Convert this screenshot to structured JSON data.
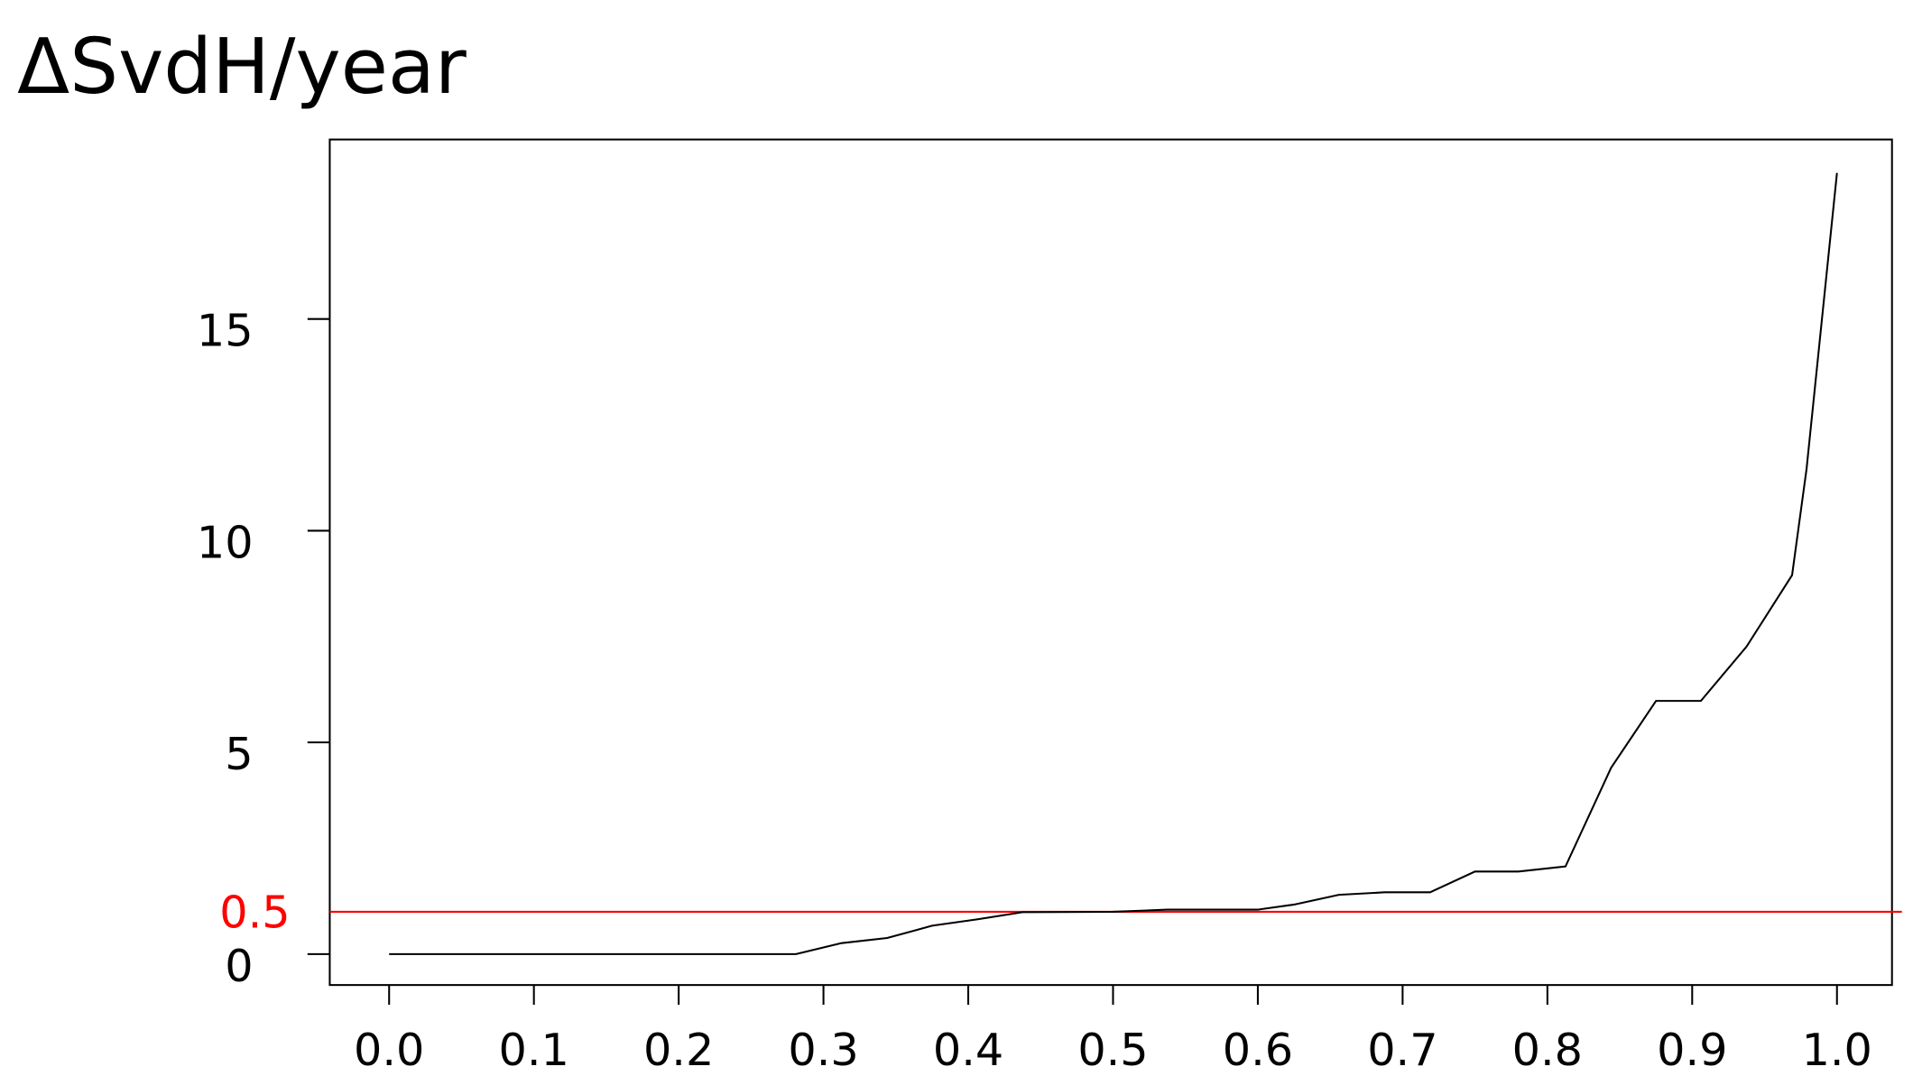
{
  "chart_data": {
    "type": "line",
    "title": "ΔSvdH/year",
    "x": [
      0,
      0.281,
      0.3125,
      0.344,
      0.375,
      0.406,
      0.4375,
      0.5,
      0.5375,
      0.6,
      0.625,
      0.656,
      0.6875,
      0.719,
      0.75,
      0.78,
      0.8125,
      0.844,
      0.875,
      0.906,
      0.9375,
      0.969,
      0.979,
      1.0
    ],
    "series": [
      {
        "color": "#000000",
        "values": [
          0,
          0,
          0.26,
          0.38,
          0.67,
          0.82,
          0.99,
          1.0,
          1.05,
          1.05,
          1.17,
          1.4,
          1.46,
          1.46,
          1.95,
          1.95,
          2.07,
          4.4,
          5.98,
          5.98,
          7.26,
          8.95,
          11.46,
          18.45
        ]
      }
    ],
    "xlim": [
      -0.041,
      1.038
    ],
    "ylim": [
      -0.73,
      19.24
    ],
    "xticks": [
      {
        "value": 0,
        "label": "0.0"
      },
      0.1,
      0.2,
      0.3,
      0.4,
      0.5,
      0.6,
      0.7,
      0.8,
      0.9,
      {
        "value": 1,
        "label": "1.0"
      }
    ],
    "yticks": [
      0,
      5,
      10,
      15
    ],
    "reference_line": {
      "value": 1,
      "label": "0.5",
      "color": "#ff0000"
    }
  }
}
